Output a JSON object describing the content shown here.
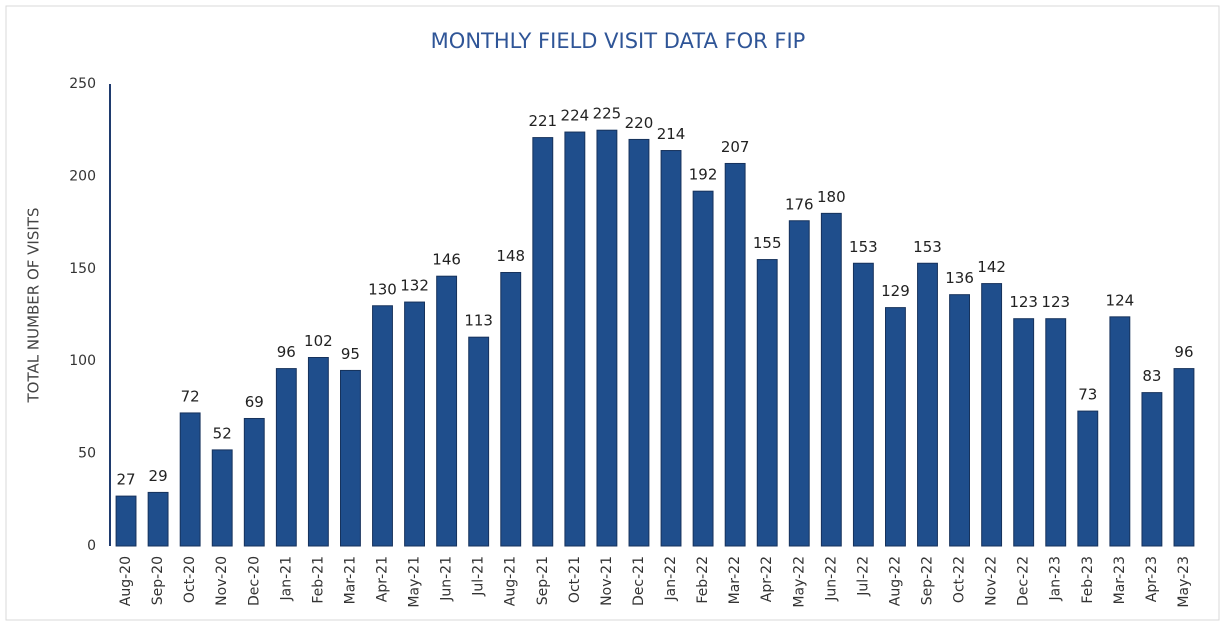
{
  "chart_data": {
    "type": "bar",
    "title": "MONTHLY FIELD VISIT DATA FOR FIP",
    "y_label": "TOTAL NUMBER OF VISITS",
    "categories": [
      "Aug-20",
      "Sep-20",
      "Oct-20",
      "Nov-20",
      "Dec-20",
      "Jan-21",
      "Feb-21",
      "Mar-21",
      "Apr-21",
      "May-21",
      "Jun-21",
      "Jul-21",
      "Aug-21",
      "Sep-21",
      "Oct-21",
      "Nov-21",
      "Dec-21",
      "Jan-22",
      "Feb-22",
      "Mar-22",
      "Apr-22",
      "May-22",
      "Jun-22",
      "Jul-22",
      "Aug-22",
      "Sep-22",
      "Oct-22",
      "Nov-22",
      "Dec-22",
      "Jan-23",
      "Feb-23",
      "Mar-23",
      "Apr-23",
      "May-23"
    ],
    "values": [
      27,
      29,
      72,
      52,
      69,
      96,
      102,
      95,
      130,
      132,
      146,
      113,
      148,
      221,
      224,
      225,
      220,
      214,
      192,
      207,
      155,
      176,
      180,
      153,
      129,
      153,
      136,
      142,
      123,
      123,
      73,
      124,
      83,
      96
    ],
    "color": "#1f4e8c",
    "ylim": [
      0,
      250
    ],
    "yticks": [
      0,
      50,
      100,
      150,
      200,
      250
    ],
    "grid": false
  }
}
